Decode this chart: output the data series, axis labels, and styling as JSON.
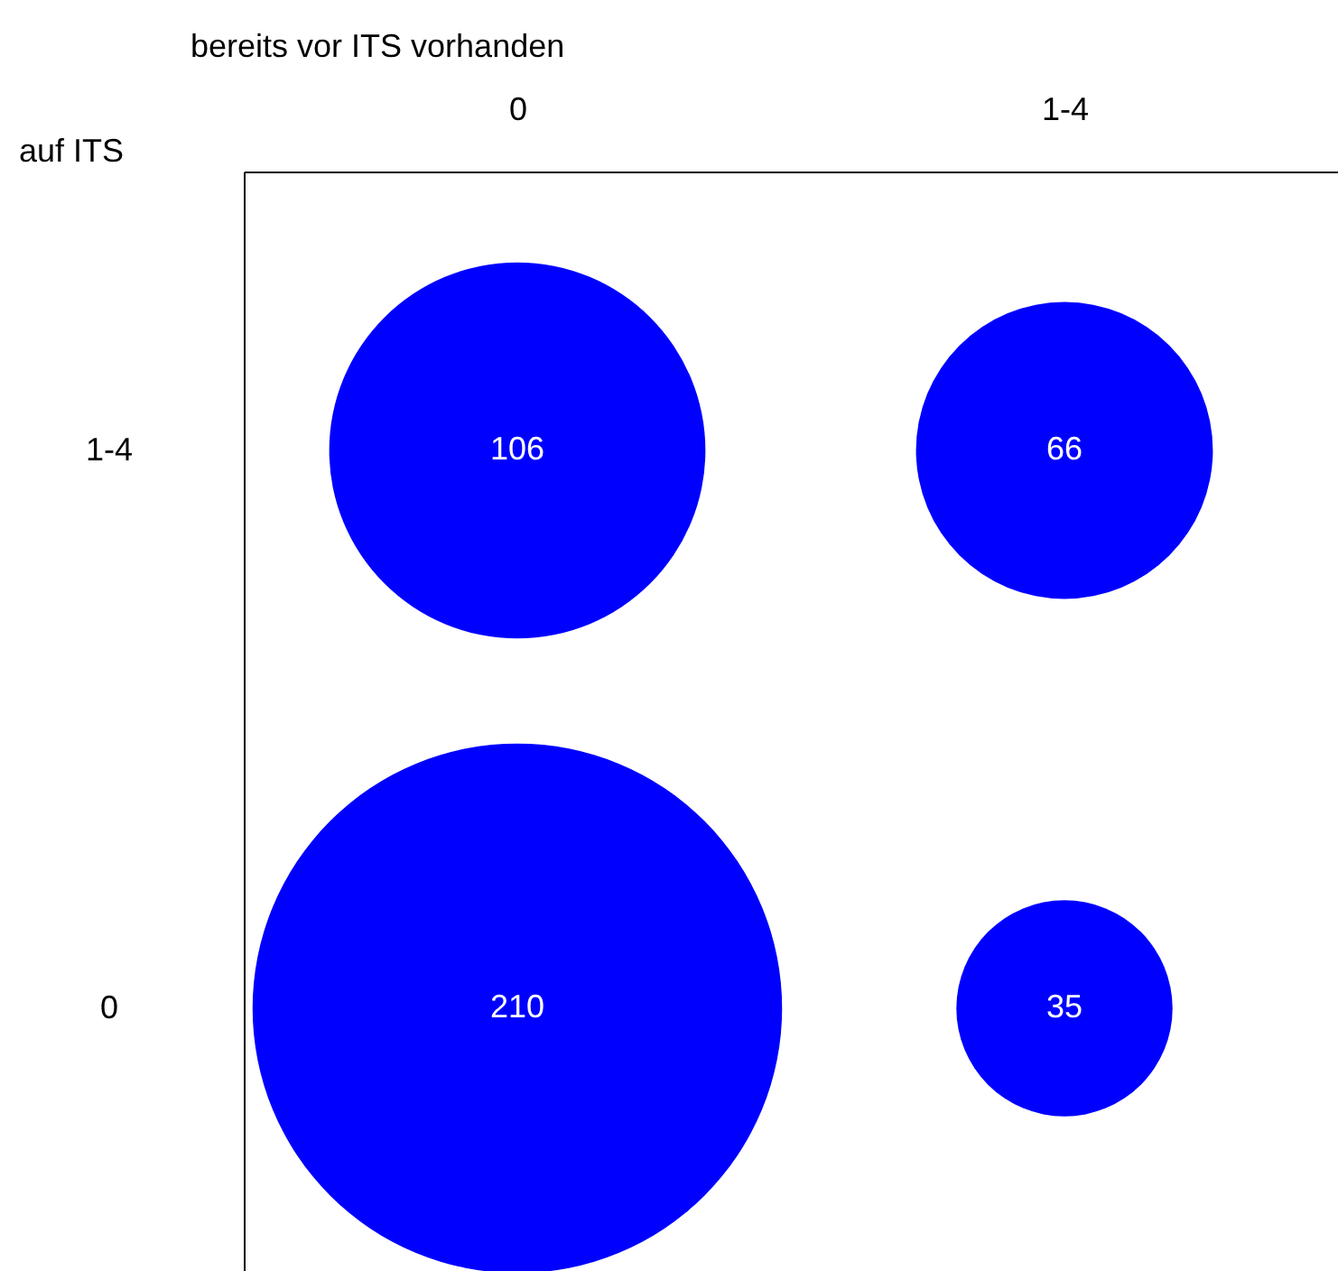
{
  "chart_data": {
    "type": "other",
    "xlabel": "bereits vor ITS vorhanden",
    "ylabel": "auf ITS",
    "categories": [
      "0",
      "1-4"
    ],
    "y_categories": [
      "1-4",
      "0"
    ],
    "series": [
      {
        "color": "#0000ff",
        "values": [
          106,
          66
        ]
      },
      {
        "color": "#0000ff",
        "values": [
          210,
          35
        ]
      }
    ],
    "data_labels": true
  }
}
